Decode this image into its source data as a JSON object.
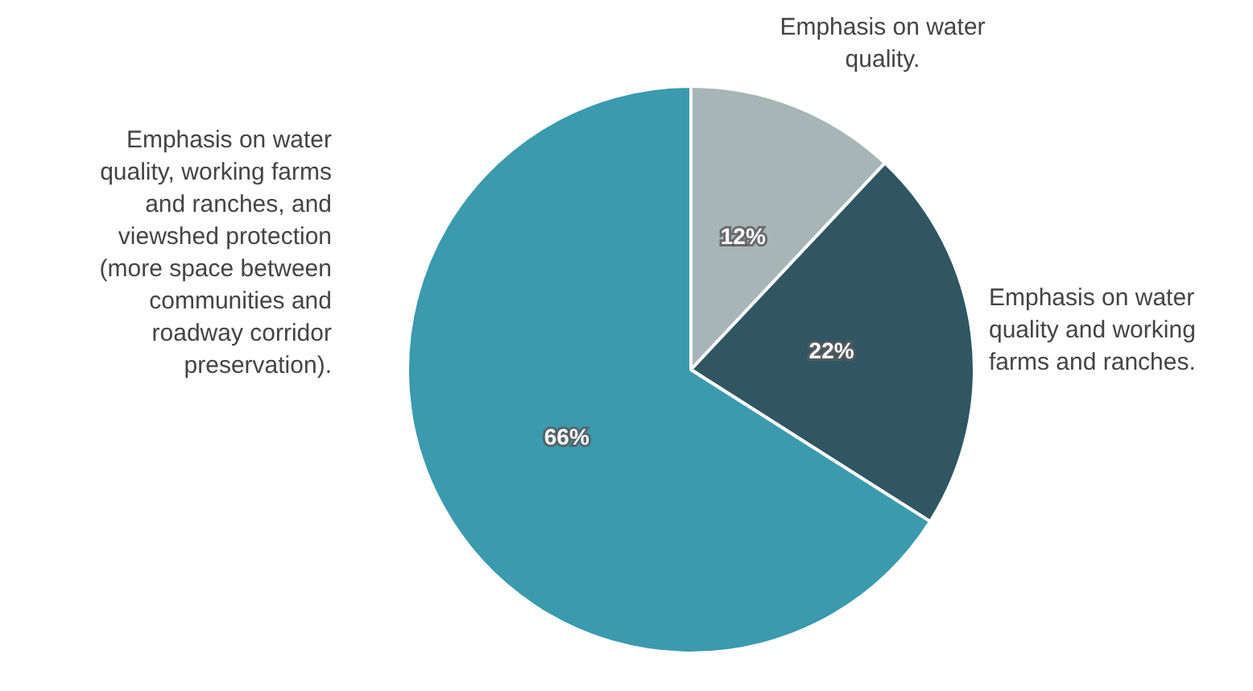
{
  "chart_data": {
    "type": "pie",
    "categories": [
      "Emphasis on water quality.",
      "Emphasis on water quality and working farms and ranches.",
      "Emphasis on water quality, working farms and ranches, and viewshed protection (more space between communities and roadway corridor preservation)."
    ],
    "values": [
      12,
      22,
      66
    ],
    "value_labels": [
      "12%",
      "22%",
      "66%"
    ],
    "colors": [
      "#a7b5b6",
      "#2f5662",
      "#3b9aae"
    ],
    "legend": false
  }
}
